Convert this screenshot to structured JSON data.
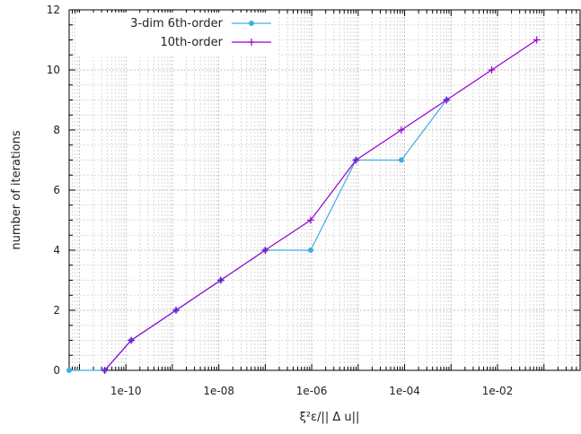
{
  "chart_data": {
    "type": "line",
    "xlabel": "ξ²ε/|| Δ u||",
    "ylabel": "number of iterations",
    "xscale": "log",
    "xlim": [
      6e-12,
      0.6
    ],
    "ylim": [
      0,
      12
    ],
    "grid": true,
    "legend_position": "top-left",
    "x_tick_labels": [
      "1e-10",
      "1e-08",
      "1e-06",
      "1e-04",
      "1e-02"
    ],
    "y_tick_labels": [
      "0",
      "2",
      "4",
      "6",
      "8",
      "10",
      "12"
    ],
    "series": [
      {
        "name": "3-dim 6th-order",
        "color": "#3cb0e0",
        "marker": "filled-circle",
        "x": [
          6e-12,
          3.5e-11,
          1.3e-10,
          1.2e-09,
          1.1e-08,
          1e-07,
          9.5e-07,
          9e-06,
          8.5e-05,
          0.0008
        ],
        "y": [
          0,
          0,
          1,
          2,
          3,
          4,
          4,
          7,
          7,
          9
        ]
      },
      {
        "name": "10th-order",
        "color": "#9400d3",
        "marker": "plus",
        "x": [
          3.5e-11,
          1.3e-10,
          1.2e-09,
          1.1e-08,
          1e-07,
          9.5e-07,
          9e-06,
          8.5e-05,
          0.0008,
          0.0075,
          0.07
        ],
        "y": [
          0,
          1,
          2,
          3,
          4,
          5,
          7,
          8,
          9,
          10,
          11
        ]
      }
    ]
  }
}
